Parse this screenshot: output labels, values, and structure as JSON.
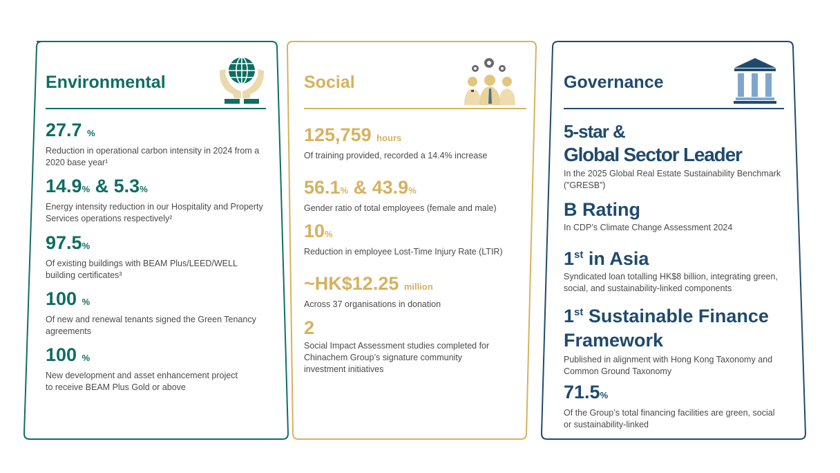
{
  "environmental": {
    "title": "Environmental",
    "icon": "globe-in-hands-icon",
    "color": "#0e6e63",
    "items": [
      {
        "value": "27.7",
        "unit": "%",
        "desc": "Reduction in operational carbon intensity in 2024 from a 2020 base year¹"
      },
      {
        "value": "14.9",
        "unit": "%",
        "joiner": " & ",
        "value2": "5.3",
        "unit2": "%",
        "desc": "Energy intensity reduction in our Hospitality and Property Services operations respectively²"
      },
      {
        "value": "97.5",
        "unit": "%",
        "desc": "Of existing buildings with BEAM Plus/LEED/WELL building certificates³"
      },
      {
        "value": "100",
        "unit": "%",
        "desc": "Of new and renewal tenants signed the Green Tenancy agreements"
      },
      {
        "value": "100",
        "unit": "%",
        "desc": "New development and asset enhancement project to receive BEAM Plus Gold or above"
      }
    ]
  },
  "social": {
    "title": "Social",
    "icon": "people-gears-icon",
    "color": "#d6b25e",
    "items": [
      {
        "value": "125,759",
        "unit": "hours",
        "desc": "Of training provided, recorded a 14.4% increase"
      },
      {
        "value": "56.1",
        "unit": "%",
        "joiner": " & ",
        "value2": "43.9",
        "unit2": "%",
        "desc": "Gender ratio of total employees (female and male)"
      },
      {
        "value": "10",
        "unit": "%",
        "desc": "Reduction in employee Lost-Time Injury Rate (LTIR)"
      },
      {
        "value": "~HK$12.25",
        "unit": "million",
        "desc": "Across 37 organisations in donation"
      },
      {
        "value": "2",
        "desc": "Social Impact Assessment studies completed for Chinachem Group’s signature community investment initiatives"
      }
    ]
  },
  "governance": {
    "title": "Governance",
    "icon": "institution-building-icon",
    "color": "#1f4a6e",
    "items": [
      {
        "line1": "5-star &",
        "line2": "Global Sector Leader",
        "desc": "In the 2025 Global Real Estate Sustainability Benchmark (”GRESB”)"
      },
      {
        "value": "B Rating",
        "desc": "In CDP’s Climate Change Assessment 2024"
      },
      {
        "value": "1",
        "sup": "st",
        "rest": " in Asia",
        "desc": "Syndicated loan totalling HK$8 billion, integrating green, social, and sustainability-linked components"
      },
      {
        "value": "1",
        "sup": "st",
        "rest": " Sustainable Finance",
        "line2": "Framework",
        "desc": "Published in alignment with Hong Kong Taxonomy and Common Ground Taxonomy"
      },
      {
        "value": "71.5",
        "unit": "%",
        "desc": "Of the Group’s total financing facilities are green, social or sustainability-linked"
      }
    ]
  }
}
